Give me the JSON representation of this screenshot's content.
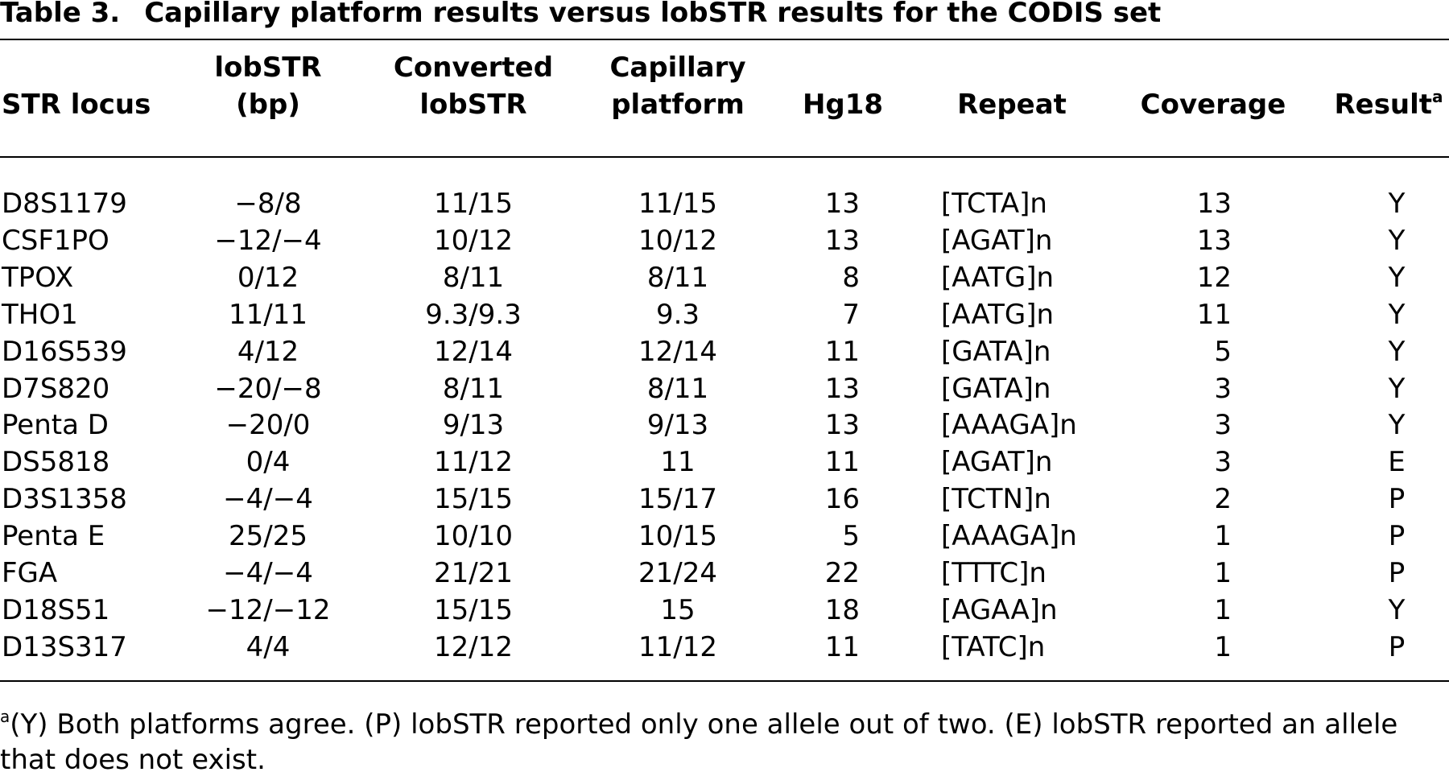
{
  "table": {
    "label": "Table 3.",
    "title": "Capillary platform results versus lobSTR results for the CODIS set",
    "columns": [
      [
        "STR locus"
      ],
      [
        "lobSTR",
        "(bp)"
      ],
      [
        "Converted",
        "lobSTR"
      ],
      [
        "Capillary",
        "platform"
      ],
      [
        "Hg18"
      ],
      [
        "Repeat"
      ],
      [
        "Coverage"
      ],
      [
        "Result"
      ]
    ],
    "result_sup": "a",
    "rows": [
      [
        "D8S1179",
        "−8/8",
        "11/15",
        "11/15",
        "13",
        "[TCTA]n",
        "13",
        "Y"
      ],
      [
        "CSF1PO",
        "−12/−4",
        "10/12",
        "10/12",
        "13",
        "[AGAT]n",
        "13",
        "Y"
      ],
      [
        "TPOX",
        "0/12",
        "8/11",
        "8/11",
        "8",
        "[AATG]n",
        "12",
        "Y"
      ],
      [
        "THO1",
        "11/11",
        "9.3/9.3",
        "9.3",
        "7",
        "[AATG]n",
        "11",
        "Y"
      ],
      [
        "D16S539",
        "4/12",
        "12/14",
        "12/14",
        "11",
        "[GATA]n",
        "5",
        "Y"
      ],
      [
        "D7S820",
        "−20/−8",
        "8/11",
        "8/11",
        "13",
        "[GATA]n",
        "3",
        "Y"
      ],
      [
        "Penta D",
        "−20/0",
        "9/13",
        "9/13",
        "13",
        "[AAAGA]n",
        "3",
        "Y"
      ],
      [
        "DS5818",
        "0/4",
        "11/12",
        "11",
        "11",
        "[AGAT]n",
        "3",
        "E"
      ],
      [
        "D3S1358",
        "−4/−4",
        "15/15",
        "15/17",
        "16",
        "[TCTN]n",
        "2",
        "P"
      ],
      [
        "Penta E",
        "25/25",
        "10/10",
        "10/15",
        "5",
        "[AAAGA]n",
        "1",
        "P"
      ],
      [
        "FGA",
        "−4/−4",
        "21/21",
        "21/24",
        "22",
        "[TTTC]n",
        "1",
        "P"
      ],
      [
        "D18S51",
        "−12/−12",
        "15/15",
        "15",
        "18",
        "[AGAA]n",
        "1",
        "Y"
      ],
      [
        "D13S317",
        "4/4",
        "12/12",
        "11/12",
        "11",
        "[TATC]n",
        "1",
        "P"
      ]
    ],
    "footnote": {
      "sup": "a",
      "text": "(Y) Both platforms agree. (P) lobSTR reported only one allele out of two. (E) lobSTR reported an allele that does not exist."
    }
  }
}
